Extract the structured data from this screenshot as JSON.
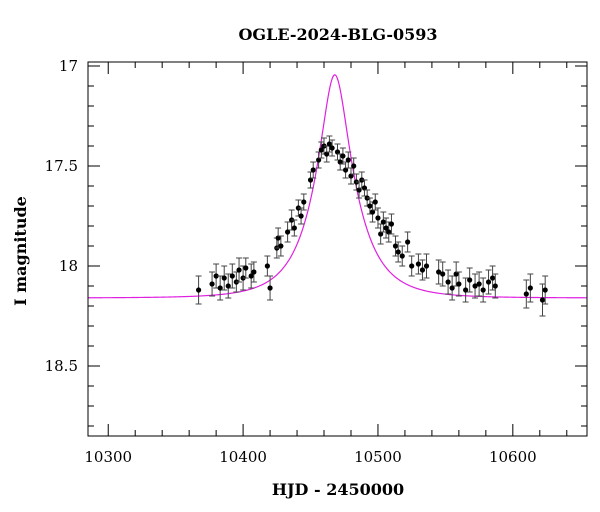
{
  "chart_data": {
    "type": "scatter",
    "title": "OGLE-2024-BLG-0593",
    "xlabel": "HJD - 2450000",
    "ylabel": "I magnitude",
    "xlim": [
      10285,
      10655
    ],
    "ylim": [
      18.85,
      16.98
    ],
    "y_inverted": true,
    "x_ticks": [
      10300,
      10400,
      10500,
      10600
    ],
    "x_tick_labels": [
      "10300",
      "10400",
      "10500",
      "10600"
    ],
    "y_ticks": [
      17,
      17.5,
      18,
      18.5
    ],
    "y_tick_labels": [
      "17",
      "17.5",
      "18",
      "18.5"
    ],
    "grid": false,
    "colors": {
      "points": "#000000",
      "errorbars": "#444444",
      "model": "#e020e0"
    },
    "series": [
      {
        "kind": "points",
        "x": [
          10367,
          10377,
          10380,
          10383,
          10386,
          10389,
          10392,
          10395,
          10397,
          10400,
          10402,
          10406,
          10408,
          10418,
          10420,
          10425,
          10426,
          10428,
          10433,
          10436,
          10438,
          10441,
          10443,
          10445,
          10450,
          10452,
          10456,
          10458,
          10460,
          10462,
          10464,
          10466,
          10470,
          10472,
          10474,
          10476,
          10478,
          10480,
          10482,
          10484,
          10486,
          10488,
          10490,
          10492,
          10494,
          10496,
          10498,
          10500,
          10502,
          10504,
          10506,
          10508,
          10510,
          10513,
          10515,
          10518,
          10522,
          10525,
          10530,
          10533,
          10536,
          10545,
          10548,
          10552,
          10555,
          10558,
          10560,
          10565,
          10568,
          10572,
          10575,
          10578,
          10582,
          10585,
          10587,
          10610,
          10613,
          10622,
          10624
        ],
        "y": [
          18.12,
          18.09,
          18.05,
          18.11,
          18.06,
          18.1,
          18.05,
          18.08,
          18.02,
          18.06,
          18.01,
          18.05,
          18.03,
          18.0,
          18.11,
          17.91,
          17.86,
          17.9,
          17.83,
          17.77,
          17.81,
          17.71,
          17.75,
          17.68,
          17.57,
          17.52,
          17.47,
          17.42,
          17.4,
          17.44,
          17.39,
          17.41,
          17.43,
          17.48,
          17.45,
          17.52,
          17.47,
          17.55,
          17.5,
          17.58,
          17.62,
          17.57,
          17.61,
          17.66,
          17.7,
          17.73,
          17.68,
          17.76,
          17.84,
          17.78,
          17.81,
          17.83,
          17.79,
          17.9,
          17.93,
          17.95,
          17.88,
          18.0,
          17.99,
          18.02,
          18.0,
          18.03,
          18.04,
          18.08,
          18.11,
          18.04,
          18.09,
          18.12,
          18.07,
          18.1,
          18.09,
          18.12,
          18.08,
          18.06,
          18.1,
          18.14,
          18.11,
          18.17,
          18.12
        ],
        "err": [
          0.07,
          0.06,
          0.06,
          0.06,
          0.06,
          0.06,
          0.06,
          0.05,
          0.06,
          0.06,
          0.05,
          0.06,
          0.05,
          0.05,
          0.06,
          0.05,
          0.05,
          0.05,
          0.05,
          0.05,
          0.04,
          0.04,
          0.04,
          0.04,
          0.04,
          0.04,
          0.04,
          0.04,
          0.04,
          0.04,
          0.04,
          0.04,
          0.04,
          0.04,
          0.04,
          0.04,
          0.04,
          0.04,
          0.04,
          0.04,
          0.04,
          0.04,
          0.04,
          0.04,
          0.04,
          0.05,
          0.04,
          0.05,
          0.05,
          0.05,
          0.05,
          0.05,
          0.05,
          0.05,
          0.05,
          0.05,
          0.05,
          0.05,
          0.05,
          0.05,
          0.06,
          0.06,
          0.06,
          0.06,
          0.06,
          0.06,
          0.06,
          0.06,
          0.06,
          0.06,
          0.06,
          0.06,
          0.06,
          0.06,
          0.06,
          0.07,
          0.07,
          0.08,
          0.07
        ]
      },
      {
        "kind": "model",
        "t0": 10468,
        "tE": 30,
        "u0": 0.32,
        "base_mag": 18.16,
        "blend_fraction": 0.8
      }
    ]
  }
}
